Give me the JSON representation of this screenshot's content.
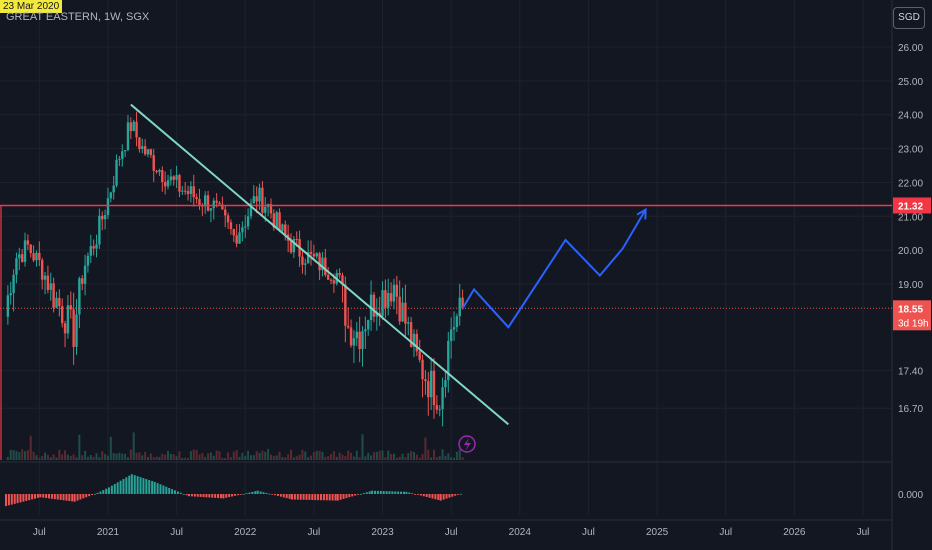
{
  "header": {
    "crosshair_date": "23 Mar 2020",
    "symbol_line": "GREAT EASTERN, 1W, SGX",
    "currency": "SGD"
  },
  "price_axis": {
    "ticks": [
      "26.00",
      "25.00",
      "24.00",
      "23.00",
      "22.00",
      "21.00",
      "20.00",
      "19.00",
      "17.40",
      "16.70"
    ],
    "lower_tick": "0.000",
    "resistance_label": "21.32",
    "last_price_label": "18.55",
    "countdown_label": "3d 19h"
  },
  "time_axis": {
    "ticks": [
      "Jul",
      "2021",
      "Jul",
      "2022",
      "Jul",
      "2023",
      "Jul",
      "2024",
      "Jul",
      "2025",
      "Jul",
      "2026",
      "Jul"
    ]
  },
  "colors": {
    "background": "#131722",
    "up": "#26a69a",
    "down": "#ef5350",
    "trendline": "#7fd8c7",
    "projection": "#2962ff",
    "resistance": "#f23645",
    "event_marker": "#9c27b0"
  },
  "chart_data": {
    "type": "candlestick",
    "symbol": "GREAT EASTERN",
    "interval": "1W",
    "exchange": "SGX",
    "y_unit": "SGD",
    "ylim": [
      16.4,
      26.4
    ],
    "price_scale_ticks": [
      26.0,
      25.0,
      24.0,
      23.0,
      22.0,
      21.0,
      20.0,
      19.0,
      17.4,
      16.7
    ],
    "x_range": [
      "2020-04",
      "2026-10"
    ],
    "resistance_level": 21.32,
    "last_price": 18.55,
    "price_series": [
      {
        "date": "2020-04",
        "close": 18.4
      },
      {
        "date": "2020-05",
        "close": 19.8
      },
      {
        "date": "2020-06",
        "close": 20.1
      },
      {
        "date": "2020-07",
        "close": 19.6
      },
      {
        "date": "2020-08",
        "close": 18.9
      },
      {
        "date": "2020-09",
        "close": 18.5
      },
      {
        "date": "2020-10",
        "close": 18.1
      },
      {
        "date": "2020-11",
        "close": 19.6
      },
      {
        "date": "2020-12",
        "close": 20.4
      },
      {
        "date": "2021-01",
        "close": 21.5
      },
      {
        "date": "2021-02",
        "close": 22.8
      },
      {
        "date": "2021-03",
        "close": 23.7
      },
      {
        "date": "2021-04",
        "close": 23.0
      },
      {
        "date": "2021-05",
        "close": 22.6
      },
      {
        "date": "2021-06",
        "close": 22.2
      },
      {
        "date": "2021-07",
        "close": 21.9
      },
      {
        "date": "2021-08",
        "close": 21.7
      },
      {
        "date": "2021-09",
        "close": 21.5
      },
      {
        "date": "2021-10",
        "close": 21.4
      },
      {
        "date": "2021-11",
        "close": 20.9
      },
      {
        "date": "2021-12",
        "close": 20.4
      },
      {
        "date": "2022-01",
        "close": 20.9
      },
      {
        "date": "2022-02",
        "close": 21.6
      },
      {
        "date": "2022-03",
        "close": 21.3
      },
      {
        "date": "2022-04",
        "close": 20.6
      },
      {
        "date": "2022-05",
        "close": 20.2
      },
      {
        "date": "2022-06",
        "close": 19.9
      },
      {
        "date": "2022-07",
        "close": 19.7
      },
      {
        "date": "2022-08",
        "close": 19.5
      },
      {
        "date": "2022-09",
        "close": 19.3
      },
      {
        "date": "2022-10",
        "close": 18.2
      },
      {
        "date": "2022-11",
        "close": 18.1
      },
      {
        "date": "2022-12",
        "close": 18.6
      },
      {
        "date": "2023-01",
        "close": 18.8
      },
      {
        "date": "2023-02",
        "close": 19.0
      },
      {
        "date": "2023-03",
        "close": 18.3
      },
      {
        "date": "2023-04",
        "close": 17.6
      },
      {
        "date": "2023-05",
        "close": 17.2
      },
      {
        "date": "2023-06",
        "close": 16.9
      },
      {
        "date": "2023-07",
        "close": 18.2
      },
      {
        "date": "2023-08",
        "close": 18.55
      }
    ],
    "trendline": [
      {
        "date": "2021-03",
        "price": 24.3
      },
      {
        "date": "2023-12",
        "price": 16.4
      }
    ],
    "projection_path": [
      {
        "date": "2023-08",
        "price": 18.55
      },
      {
        "date": "2023-09",
        "price": 18.9
      },
      {
        "date": "2023-12",
        "price": 18.2
      },
      {
        "date": "2024-05",
        "price": 20.3
      },
      {
        "date": "2024-08",
        "price": 19.25
      },
      {
        "date": "2024-10",
        "price": 20.05
      },
      {
        "date": "2024-12",
        "price": 21.2
      }
    ],
    "oscillator": {
      "zero_label": 0.0,
      "values": [
        {
          "date": "2020-04",
          "value": -0.55
        },
        {
          "date": "2020-07",
          "value": -0.15
        },
        {
          "date": "2020-10",
          "value": -0.35
        },
        {
          "date": "2020-12",
          "value": 0.05
        },
        {
          "date": "2021-01",
          "value": 0.3
        },
        {
          "date": "2021-03",
          "value": 0.9
        },
        {
          "date": "2021-05",
          "value": 0.55
        },
        {
          "date": "2021-08",
          "value": -0.1
        },
        {
          "date": "2021-11",
          "value": -0.2
        },
        {
          "date": "2022-02",
          "value": 0.15
        },
        {
          "date": "2022-05",
          "value": -0.25
        },
        {
          "date": "2022-09",
          "value": -0.3
        },
        {
          "date": "2022-12",
          "value": 0.15
        },
        {
          "date": "2023-03",
          "value": 0.1
        },
        {
          "date": "2023-06",
          "value": -0.3
        },
        {
          "date": "2023-08",
          "value": 0.05
        }
      ]
    }
  }
}
